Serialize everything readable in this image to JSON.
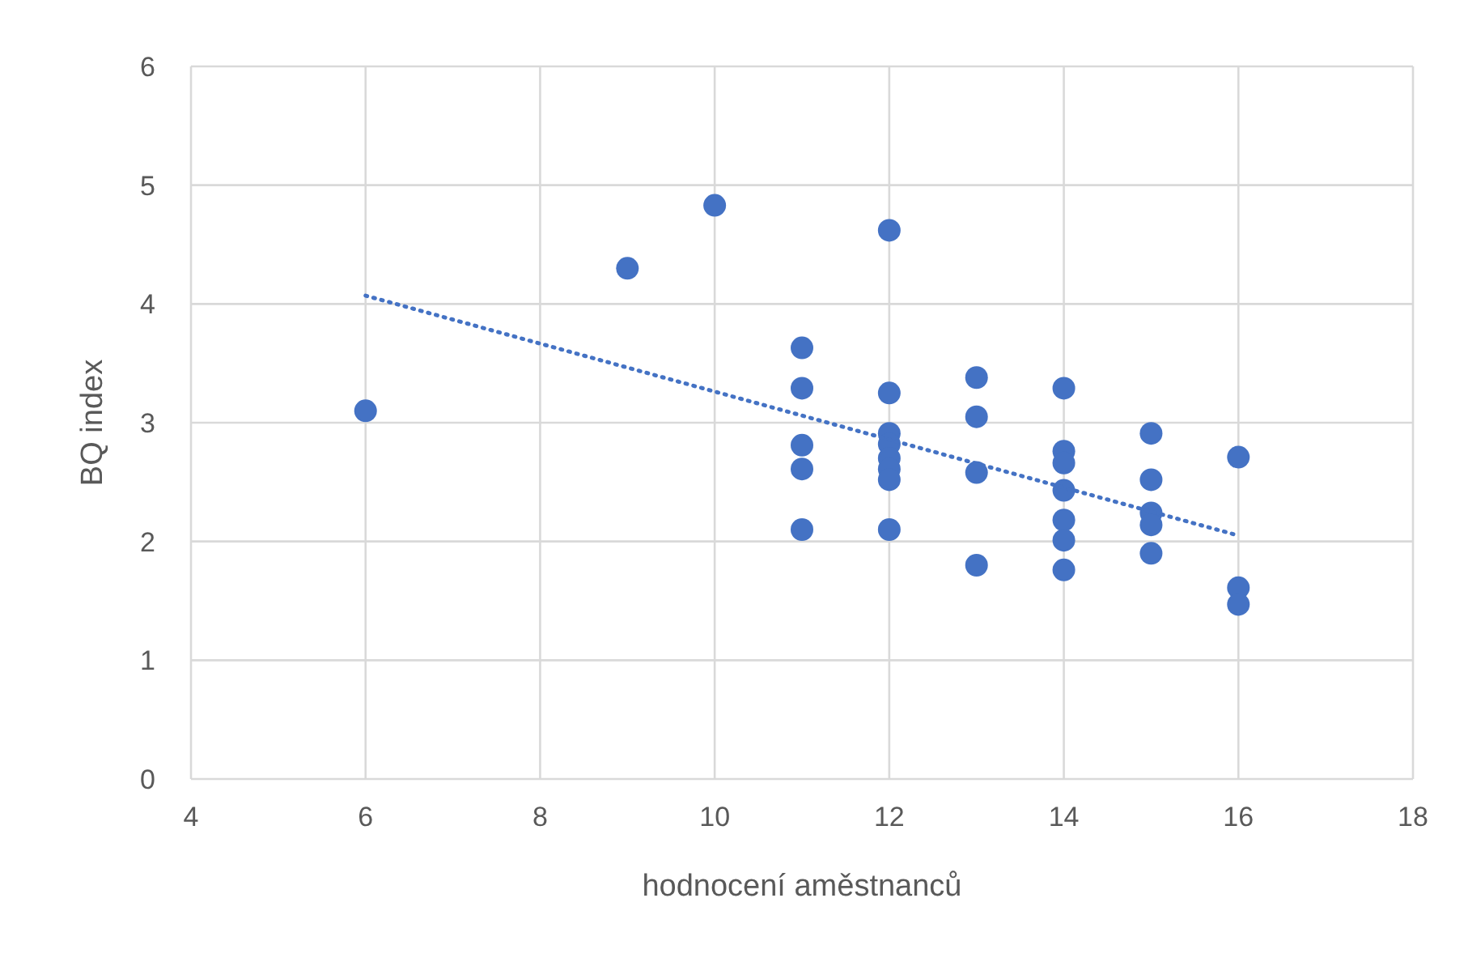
{
  "chart_data": {
    "type": "scatter",
    "xlabel": "hodnocení aměstnanců",
    "ylabel": "BQ index",
    "xlim": [
      4,
      18
    ],
    "xticks": [
      4,
      6,
      8,
      10,
      12,
      14,
      16,
      18
    ],
    "ylim": [
      0,
      6
    ],
    "yticks": [
      0,
      1,
      2,
      3,
      4,
      5,
      6
    ],
    "grid": true,
    "series": [
      {
        "color": "#4472c4",
        "marker": "circle",
        "x": [
          6,
          9,
          10,
          11,
          11,
          11,
          11,
          11,
          12,
          12,
          12,
          12,
          12,
          12,
          12,
          12,
          13,
          13,
          13,
          13,
          14,
          14,
          14,
          14,
          14,
          14,
          14,
          15,
          15,
          15,
          15,
          15,
          16,
          16,
          16
        ],
        "values": [
          3.1,
          4.3,
          4.83,
          3.63,
          3.29,
          2.81,
          2.61,
          2.1,
          4.62,
          3.25,
          2.91,
          2.82,
          2.7,
          2.61,
          2.52,
          2.1,
          3.38,
          3.05,
          2.58,
          1.8,
          3.29,
          2.76,
          2.66,
          2.43,
          2.18,
          2.01,
          1.76,
          2.91,
          2.52,
          2.24,
          2.14,
          1.9,
          2.71,
          1.61,
          1.47
        ]
      },
      {
        "type": "line",
        "color": "#4472c4",
        "line_style": "dotted",
        "marker": "none",
        "x": [
          6,
          16
        ],
        "values": [
          4.07,
          2.05
        ]
      }
    ]
  }
}
